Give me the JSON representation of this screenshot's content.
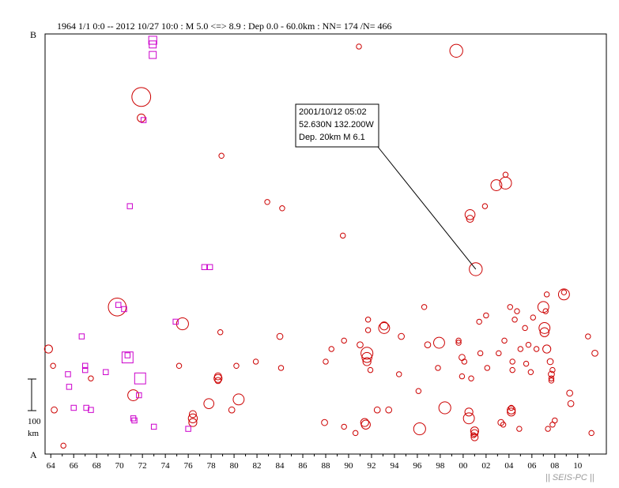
{
  "chart_data": {
    "type": "scatter",
    "title": "1964 1/1 0:0 -- 2012 10/27 10:0  : M 5.0 <=> 8.9   :  Dep 0.0 - 60.0km :  NN= 174 /N= 466",
    "top_label": "B",
    "bottom_label": "A",
    "scale_label": "100",
    "scale_unit": "km",
    "xlim": [
      1963.5,
      2012.5
    ],
    "ylim": [
      0,
      100
    ],
    "x_tick_labels": [
      "64",
      "66",
      "68",
      "70",
      "72",
      "74",
      "76",
      "78",
      "80",
      "82",
      "84",
      "86",
      "88",
      "90",
      "92",
      "94",
      "96",
      "98",
      "00",
      "02",
      "04",
      "06",
      "08",
      "10"
    ],
    "x_ticks": [
      1964,
      1966,
      1968,
      1970,
      1972,
      1974,
      1976,
      1978,
      1980,
      1982,
      1984,
      1986,
      1988,
      1990,
      1992,
      1994,
      1996,
      1998,
      2000,
      2002,
      2004,
      2006,
      2008,
      2010
    ],
    "colors": {
      "red": "#cc0000",
      "magenta": "#cc00cc"
    },
    "series": [
      {
        "color": "#cc0000",
        "marker": "circle",
        "points": [
          [
            1963.8,
            25,
            5.6
          ],
          [
            1964.2,
            21,
            5.3
          ],
          [
            1964.3,
            10.5,
            5.4
          ],
          [
            1965.1,
            2,
            5.3
          ],
          [
            1967.5,
            18,
            5.3
          ],
          [
            1969.8,
            35,
            6.6
          ],
          [
            1971.2,
            14,
            5.9
          ],
          [
            1971.9,
            85,
            6.7
          ],
          [
            1971.9,
            80,
            5.6
          ],
          [
            1975.5,
            31,
            6.0
          ],
          [
            1975.2,
            21,
            5.3
          ],
          [
            1976.4,
            8.5,
            5.7
          ],
          [
            1976.4,
            9.5,
            5.5
          ],
          [
            1976.4,
            7.5,
            5.6
          ],
          [
            1977.8,
            12,
            5.8
          ],
          [
            1978.6,
            18,
            5.6
          ],
          [
            1978.6,
            18.5,
            5.5
          ],
          [
            1978.6,
            17.5,
            5.4
          ],
          [
            1978.8,
            29,
            5.3
          ],
          [
            1979.8,
            10.5,
            5.4
          ],
          [
            1980.4,
            13,
            5.9
          ],
          [
            1980.2,
            21,
            5.3
          ],
          [
            1981.9,
            22,
            5.3
          ],
          [
            1978.9,
            71,
            5.3
          ],
          [
            1982.9,
            60,
            5.3
          ],
          [
            1984.2,
            58.5,
            5.3
          ],
          [
            1984.0,
            28,
            5.4
          ],
          [
            1984.1,
            20.5,
            5.3
          ],
          [
            1987.9,
            7.5,
            5.4
          ],
          [
            1988.0,
            22,
            5.3
          ],
          [
            1988.5,
            25,
            5.3
          ],
          [
            1989.5,
            52,
            5.3
          ],
          [
            1989.6,
            27,
            5.3
          ],
          [
            1989.6,
            6.5,
            5.3
          ],
          [
            1990.6,
            5,
            5.3
          ],
          [
            1990.9,
            97,
            5.3
          ],
          [
            1991.0,
            26,
            5.4
          ],
          [
            1991.4,
            7.5,
            5.6
          ],
          [
            1991.5,
            7,
            5.7
          ],
          [
            1991.6,
            24,
            6.0
          ],
          [
            1991.6,
            23,
            5.8
          ],
          [
            1991.6,
            22,
            5.6
          ],
          [
            1991.7,
            29.5,
            5.3
          ],
          [
            1991.7,
            32,
            5.3
          ],
          [
            1991.9,
            20,
            5.3
          ],
          [
            1992.5,
            10.5,
            5.4
          ],
          [
            1993.1,
            30,
            5.9
          ],
          [
            1993.1,
            30.5,
            5.6
          ],
          [
            1993.5,
            10.5,
            5.4
          ],
          [
            1994.4,
            19,
            5.3
          ],
          [
            1994.6,
            28,
            5.4
          ],
          [
            1996.1,
            15,
            5.3
          ],
          [
            1996.2,
            6,
            6.0
          ],
          [
            1996.6,
            35,
            5.3
          ],
          [
            1996.9,
            26,
            5.4
          ],
          [
            1997.9,
            26.5,
            5.9
          ],
          [
            1997.8,
            20.5,
            5.3
          ],
          [
            1998.4,
            11,
            6.0
          ],
          [
            1999.4,
            96,
            6.1
          ],
          [
            1999.6,
            27,
            5.3
          ],
          [
            1999.6,
            26.5,
            5.3
          ],
          [
            1999.9,
            18.5,
            5.3
          ],
          [
            1999.9,
            23,
            5.4
          ],
          [
            2000.1,
            22,
            5.3
          ],
          [
            2000.5,
            10,
            5.6
          ],
          [
            2000.5,
            8.5,
            5.9
          ],
          [
            2000.6,
            57,
            5.8
          ],
          [
            2000.6,
            56,
            5.5
          ],
          [
            2000.7,
            18,
            5.3
          ],
          [
            2001.0,
            5.5,
            5.6
          ],
          [
            2001.0,
            4,
            5.5
          ],
          [
            2001.0,
            5,
            5.5
          ],
          [
            2000.9,
            4.5,
            5.3
          ],
          [
            2001.1,
            44,
            6.1
          ],
          [
            2001.4,
            31.5,
            5.3
          ],
          [
            2001.5,
            24,
            5.3
          ],
          [
            2001.9,
            59,
            5.3
          ],
          [
            2002.0,
            33,
            5.3
          ],
          [
            2002.1,
            20.5,
            5.3
          ],
          [
            2002.9,
            64,
            5.9
          ],
          [
            2003.1,
            24,
            5.3
          ],
          [
            2003.3,
            7.5,
            5.4
          ],
          [
            2003.5,
            7,
            5.3
          ],
          [
            2003.6,
            27,
            5.3
          ],
          [
            2003.7,
            64.5,
            6.0
          ],
          [
            2003.7,
            66.5,
            5.3
          ],
          [
            2004.1,
            35,
            5.3
          ],
          [
            2004.2,
            10.5,
            5.6
          ],
          [
            2004.2,
            10,
            5.6
          ],
          [
            2004.2,
            11,
            5.3
          ],
          [
            2004.3,
            22,
            5.3
          ],
          [
            2004.3,
            20,
            5.3
          ],
          [
            2004.5,
            32,
            5.3
          ],
          [
            2004.7,
            34,
            5.3
          ],
          [
            2004.9,
            6,
            5.3
          ],
          [
            2005.0,
            25,
            5.3
          ],
          [
            2005.4,
            30,
            5.3
          ],
          [
            2005.5,
            21.5,
            5.3
          ],
          [
            2005.7,
            26,
            5.3
          ],
          [
            2005.9,
            19.5,
            5.3
          ],
          [
            2006.1,
            32.5,
            5.3
          ],
          [
            2006.4,
            25,
            5.3
          ],
          [
            2007.0,
            35,
            5.9
          ],
          [
            2007.1,
            30,
            5.9
          ],
          [
            2007.1,
            29,
            5.7
          ],
          [
            2007.2,
            34,
            5.3
          ],
          [
            2007.3,
            38,
            5.3
          ],
          [
            2007.3,
            25,
            5.6
          ],
          [
            2007.4,
            6,
            5.3
          ],
          [
            2007.6,
            22,
            5.4
          ],
          [
            2007.7,
            19,
            5.4
          ],
          [
            2007.7,
            18,
            5.3
          ],
          [
            2007.7,
            17.5,
            5.3
          ],
          [
            2007.8,
            20,
            5.3
          ],
          [
            2007.8,
            7,
            5.3
          ],
          [
            2008.0,
            8,
            5.3
          ],
          [
            2008.8,
            38,
            5.9
          ],
          [
            2008.8,
            38.5,
            5.3
          ],
          [
            2009.3,
            14.5,
            5.4
          ],
          [
            2009.4,
            12,
            5.4
          ],
          [
            2010.9,
            28,
            5.3
          ],
          [
            2011.2,
            5,
            5.3
          ],
          [
            2011.5,
            24,
            5.4
          ]
        ]
      },
      {
        "color": "#cc00cc",
        "marker": "square",
        "points": [
          [
            1965.5,
            19,
            5.3
          ],
          [
            1965.6,
            16,
            5.3
          ],
          [
            1966.0,
            11,
            5.3
          ],
          [
            1966.7,
            28,
            5.3
          ],
          [
            1967.0,
            20,
            5.3
          ],
          [
            1967.1,
            11,
            5.3
          ],
          [
            1967.5,
            10.5,
            5.3
          ],
          [
            1968.8,
            19.5,
            5.3
          ],
          [
            1969.9,
            35.5,
            5.3
          ],
          [
            1970.4,
            34.5,
            5.3
          ],
          [
            1970.7,
            23,
            5.9
          ],
          [
            1970.9,
            59,
            5.3
          ],
          [
            1971.3,
            8,
            5.3
          ],
          [
            1971.2,
            8.5,
            5.3
          ],
          [
            1971.7,
            14,
            5.3
          ],
          [
            1971.8,
            18,
            5.9
          ],
          [
            1972.1,
            79.5,
            5.3
          ],
          [
            1972.9,
            98.5,
            5.6
          ],
          [
            1972.9,
            97.5,
            5.5
          ],
          [
            1972.9,
            95,
            5.5
          ],
          [
            1973.0,
            6.5,
            5.3
          ],
          [
            1974.9,
            31.5,
            5.3
          ],
          [
            1976.0,
            6,
            5.3
          ],
          [
            1977.4,
            44.5,
            5.3
          ],
          [
            1977.9,
            44.5,
            5.3
          ],
          [
            1967.0,
            21,
            5.3
          ],
          [
            1970.7,
            23.5,
            5.3
          ]
        ]
      }
    ],
    "annotation": {
      "date": "2001/10/12 05:02",
      "coords": "52.630N   132.200W",
      "dep_mag": "Dep. 20km    M 6.1",
      "point": [
        2001.1,
        44
      ]
    }
  },
  "watermark": "|| SEIS-PC ||"
}
